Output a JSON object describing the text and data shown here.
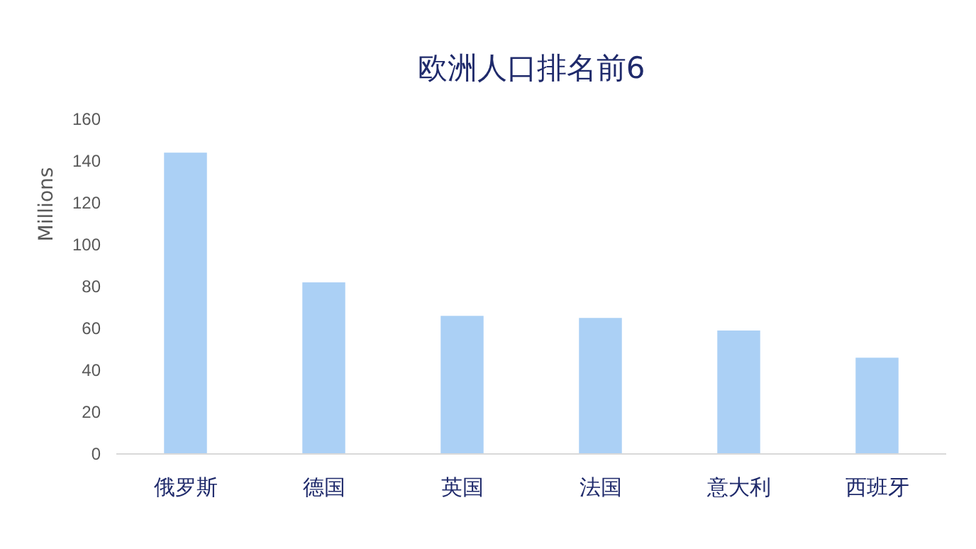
{
  "chart_data": {
    "type": "bar",
    "title": "欧洲人口排名前6",
    "ylabel": "Millions",
    "categories": [
      "俄罗斯",
      "德国",
      "英国",
      "法国",
      "意大利",
      "西班牙"
    ],
    "values": [
      144,
      82,
      66,
      65,
      59,
      46
    ],
    "color": "#abd0f5",
    "ylim": [
      0,
      160
    ],
    "yticks": [
      0,
      20,
      40,
      60,
      80,
      100,
      120,
      140,
      160
    ],
    "grid": false
  }
}
